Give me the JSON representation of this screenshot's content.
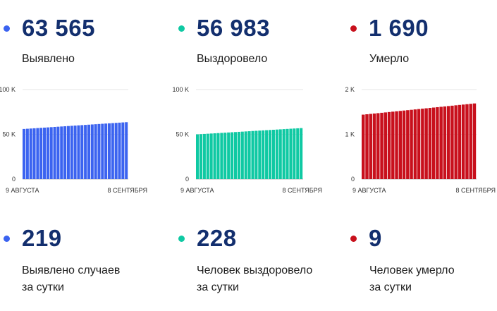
{
  "chart_data": [
    {
      "type": "bar",
      "total": "63 565",
      "total_label": "Выявлено",
      "color": "#3b63f0",
      "yticks": [
        "100 K",
        "50 K",
        "0"
      ],
      "ylim": [
        0,
        100000
      ],
      "x_start_label": "9 АВГУСТА",
      "x_end_label": "8 СЕНТЯБРЯ",
      "start_value": 56000,
      "end_value": 63565,
      "bar_count": 31,
      "daily": "219",
      "daily_label_1": "Выявлено случаев",
      "daily_label_2": "за сутки"
    },
    {
      "type": "bar",
      "total": "56 983",
      "total_label": "Выздоровело",
      "color": "#0fc9a3",
      "yticks": [
        "100 K",
        "50 K",
        "0"
      ],
      "ylim": [
        0,
        100000
      ],
      "x_start_label": "9 АВГУСТА",
      "x_end_label": "8 СЕНТЯБРЯ",
      "start_value": 50000,
      "end_value": 56983,
      "bar_count": 31,
      "daily": "228",
      "daily_label_1": "Человек выздоровело",
      "daily_label_2": "за сутки"
    },
    {
      "type": "bar",
      "total": "1 690",
      "total_label": "Умерло",
      "color": "#c8101c",
      "yticks": [
        "2 K",
        "1 K",
        "0"
      ],
      "ylim": [
        0,
        2000
      ],
      "x_start_label": "9 АВГУСТА",
      "x_end_label": "8 СЕНТЯБРЯ",
      "start_value": 1440,
      "end_value": 1690,
      "bar_count": 31,
      "daily": "9",
      "daily_label_1": "Человек умерло",
      "daily_label_2": "за сутки"
    }
  ]
}
